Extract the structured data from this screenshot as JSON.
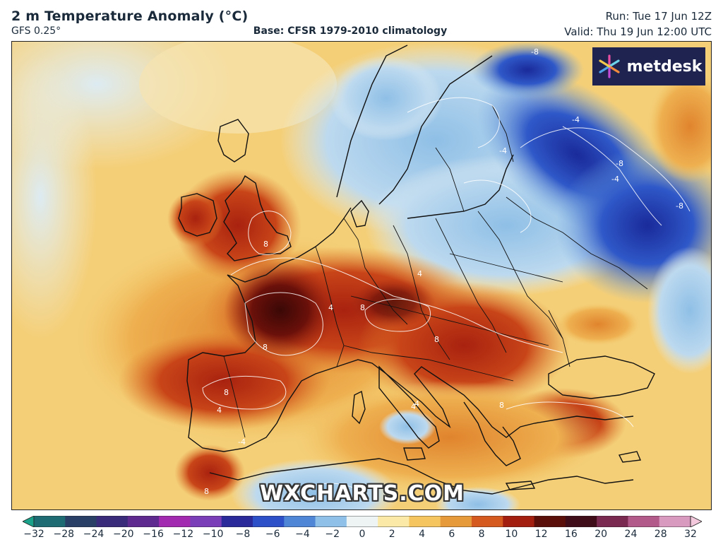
{
  "header": {
    "title": "2 m Temperature Anomaly (°C)",
    "model": "GFS 0.25°",
    "base": "Base: CFSR 1979-2010 climatology",
    "run": "Run: Tue 17 Jun 12Z",
    "valid": "Valid: Thu 19 Jun 12:00 UTC"
  },
  "logo": {
    "text": "metdesk",
    "icon": "metdesk-star-icon"
  },
  "watermark": "WXCHARTS.COM",
  "colorbar": {
    "ticks": [
      "−32",
      "−28",
      "−24",
      "−20",
      "−16",
      "−12",
      "−10",
      "−8",
      "−6",
      "−4",
      "−2",
      "0",
      "2",
      "4",
      "6",
      "8",
      "10",
      "12",
      "16",
      "20",
      "24",
      "28",
      "32"
    ],
    "colors": [
      "#1aa38a",
      "#1f6b73",
      "#2a3f66",
      "#3a2a7a",
      "#5e2a8f",
      "#a22ab0",
      "#7a3fb8",
      "#2a2a9a",
      "#2d4fc8",
      "#4f86d6",
      "#8fc0e8",
      "#eef4f4",
      "#fbe9a8",
      "#f5c560",
      "#e79a3a",
      "#d45a20",
      "#a32010",
      "#5a0f0a",
      "#3f0c1a",
      "#7a2a50",
      "#b25a8a",
      "#d99ac0",
      "#f3c8dc"
    ]
  },
  "map": {
    "region": "Europe",
    "contour_labels": [
      "8",
      "8",
      "8",
      "8",
      "8",
      "8",
      "4",
      "4",
      "4",
      "4",
      "-4",
      "-4",
      "-4",
      "-8",
      "-8",
      "-8",
      "-4",
      "4",
      "8"
    ]
  }
}
